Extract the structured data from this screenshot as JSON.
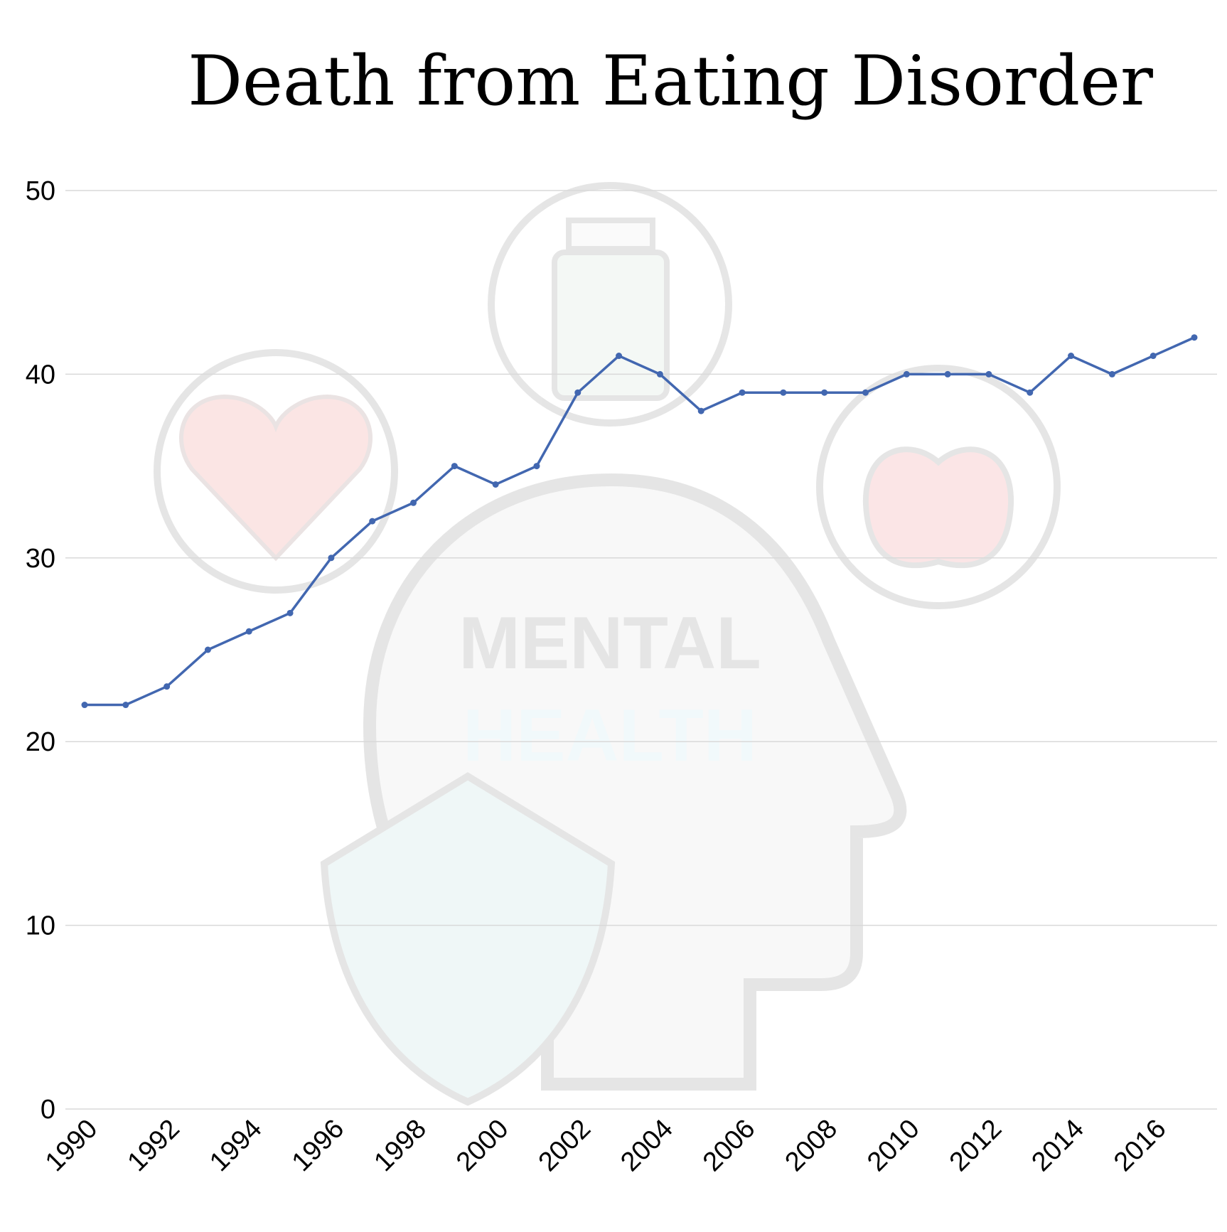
{
  "chart_data": {
    "type": "line",
    "title": "Death from Eating Disorder",
    "xlabel": "",
    "ylabel": "",
    "x": [
      1990,
      1991,
      1992,
      1993,
      1994,
      1995,
      1996,
      1997,
      1998,
      1999,
      2000,
      2001,
      2002,
      2003,
      2004,
      2005,
      2006,
      2007,
      2008,
      2009,
      2010,
      2011,
      2012,
      2013,
      2014,
      2015,
      2016,
      2017
    ],
    "values": [
      22,
      22,
      23,
      25,
      26,
      27,
      30,
      32,
      33,
      35,
      34,
      35,
      39,
      41,
      40,
      38,
      39,
      39,
      39,
      39,
      40,
      40,
      40,
      39,
      41,
      40,
      41,
      42
    ],
    "xticks": [
      "1990",
      "1992",
      "1994",
      "1996",
      "1998",
      "2000",
      "2002",
      "2004",
      "2006",
      "2008",
      "2010",
      "2012",
      "2014",
      "2016"
    ],
    "yticks": [
      "0",
      "10",
      "20",
      "30",
      "40",
      "50"
    ],
    "ylim": [
      0,
      50
    ],
    "grid": "horizontal",
    "line_color": "#4267b0"
  },
  "watermark": {
    "line1": "MENTAL",
    "line2": "HEALTH"
  }
}
